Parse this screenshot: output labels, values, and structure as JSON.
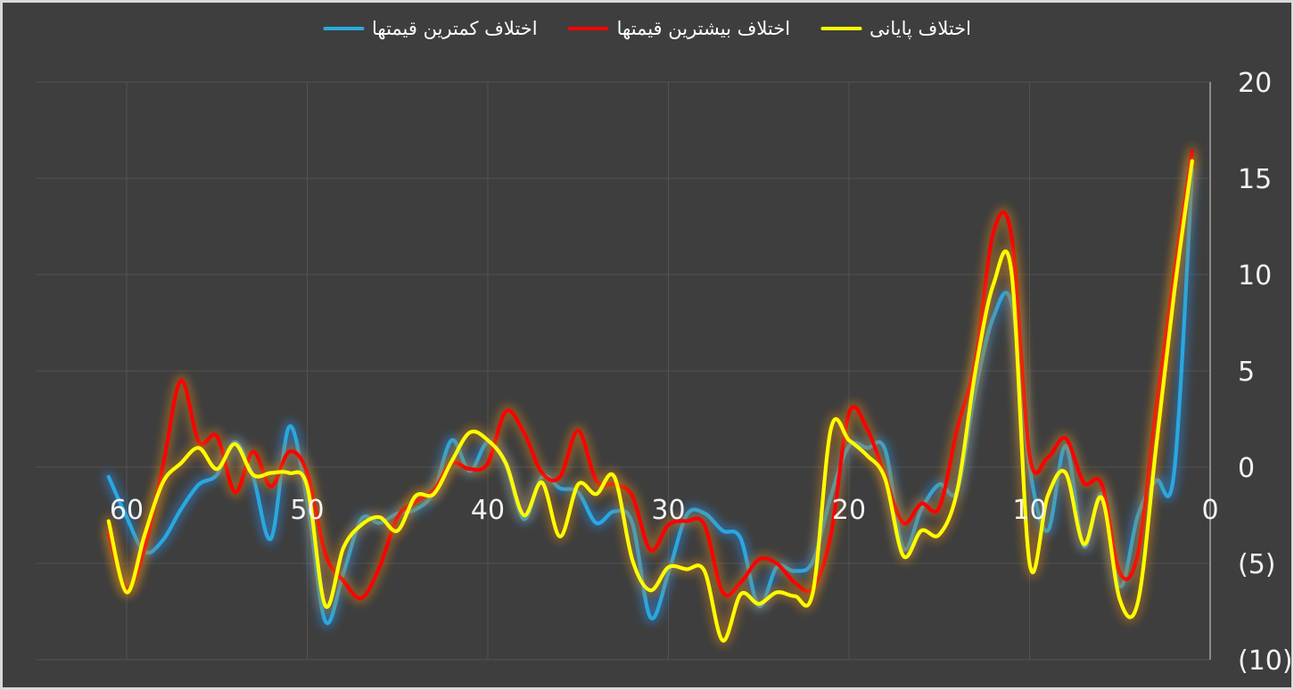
{
  "window": {
    "background_color": "#3E3E3E",
    "frame_color": "#D9D9D9",
    "grid_color": "#525252",
    "axis_line_color": "#9E9E9E",
    "tick_text_color": "#F2F2F2"
  },
  "chart_data": {
    "type": "line",
    "title": "",
    "smooth_lines": true,
    "glow_effect": true,
    "grid": true,
    "legend_position": "top-center",
    "x_axis": {
      "ticks": [
        60,
        50,
        40,
        30,
        20,
        10,
        0
      ],
      "reversed": true,
      "range": [
        65,
        0
      ],
      "labels_inside_plot": true
    },
    "y_axis": {
      "ticks": [
        20,
        15,
        10,
        5,
        0,
        -5,
        -10
      ],
      "tick_labels": [
        "20",
        "15",
        "10",
        "5",
        "0",
        "(5)",
        "(10)"
      ],
      "range": [
        -10,
        20
      ],
      "side": "right"
    },
    "x": [
      61,
      60,
      59,
      58,
      57,
      56,
      55,
      54,
      53,
      52,
      51,
      50,
      49,
      48,
      47,
      46,
      45,
      44,
      43,
      42,
      41,
      40,
      39,
      38,
      37,
      36,
      35,
      34,
      33,
      32,
      31,
      30,
      29,
      28,
      27,
      26,
      25,
      24,
      23,
      22,
      21,
      20,
      19,
      18,
      17,
      16,
      15,
      14,
      13,
      12,
      11,
      10,
      9,
      8,
      7,
      6,
      5,
      4,
      3,
      2,
      1
    ],
    "series": [
      {
        "name": "اختلاف کمترین قیمتها",
        "color": "#29A8DF",
        "glow_color": "#2E86D6",
        "values": [
          -0.5,
          -2.6,
          -4.4,
          -3.8,
          -2.2,
          -0.9,
          -0.4,
          1.3,
          -0.5,
          -3.7,
          2.1,
          -1.8,
          -8.0,
          -5.5,
          -2.7,
          -2.9,
          -2.4,
          -2.2,
          -1.3,
          1.4,
          -0.2,
          1.3,
          0.1,
          -2.7,
          -0.5,
          -1.1,
          -1.3,
          -2.9,
          -2.3,
          -2.9,
          -7.8,
          -5.5,
          -2.5,
          -2.4,
          -3.3,
          -3.7,
          -7.2,
          -5.2,
          -5.4,
          -4.9,
          -1.5,
          1.1,
          1.0,
          0.9,
          -4.2,
          -2.2,
          -0.9,
          -1.2,
          4.0,
          7.8,
          8.5,
          0.0,
          -3.3,
          1.1,
          -4.1,
          -1.4,
          -6.2,
          -2.5,
          -0.7,
          -0.3,
          15.4
        ]
      },
      {
        "name": "اختلاف بیشترین قیمتها",
        "color": "#FE0000",
        "glow_color": "#BF7B1F",
        "values": [
          -3.4,
          -6.3,
          -4.2,
          0.0,
          4.5,
          1.3,
          1.6,
          -1.3,
          0.8,
          -1.0,
          0.8,
          -0.3,
          -4.5,
          -5.9,
          -6.8,
          -5.2,
          -2.6,
          -1.8,
          -1.2,
          0.2,
          -0.1,
          0.2,
          2.9,
          1.8,
          -0.3,
          -0.5,
          1.9,
          -0.7,
          -0.9,
          -1.5,
          -4.3,
          -3.0,
          -2.8,
          -3.0,
          -6.5,
          -6.0,
          -4.8,
          -5.0,
          -6.0,
          -6.3,
          -3.5,
          2.8,
          2.0,
          -0.5,
          -2.9,
          -1.9,
          -2.1,
          2.0,
          5.5,
          12.2,
          12.0,
          0.6,
          0.5,
          1.5,
          -0.8,
          -0.9,
          -5.5,
          -4.5,
          3.0,
          10.0,
          16.4
        ]
      },
      {
        "name": "اختلاف پایانی",
        "color": "#FFFC00",
        "glow_color": "#BF7B1F",
        "values": [
          -2.8,
          -6.5,
          -3.5,
          -0.8,
          0.2,
          1.0,
          -0.1,
          1.2,
          -0.4,
          -0.3,
          -0.3,
          -1.0,
          -7.2,
          -4.2,
          -3.0,
          -2.6,
          -3.3,
          -1.5,
          -1.4,
          0.3,
          1.8,
          1.4,
          0.2,
          -2.5,
          -0.8,
          -3.6,
          -0.9,
          -1.4,
          -0.5,
          -4.8,
          -6.4,
          -5.2,
          -5.3,
          -5.4,
          -9.0,
          -6.6,
          -7.1,
          -6.5,
          -6.7,
          -6.5,
          2.0,
          1.4,
          0.6,
          -0.6,
          -4.6,
          -3.3,
          -3.5,
          -1.2,
          5.0,
          9.5,
          10.1,
          -5.0,
          -1.5,
          -0.3,
          -4.0,
          -1.6,
          -6.9,
          -7.0,
          1.0,
          9.0,
          15.9
        ]
      }
    ]
  }
}
